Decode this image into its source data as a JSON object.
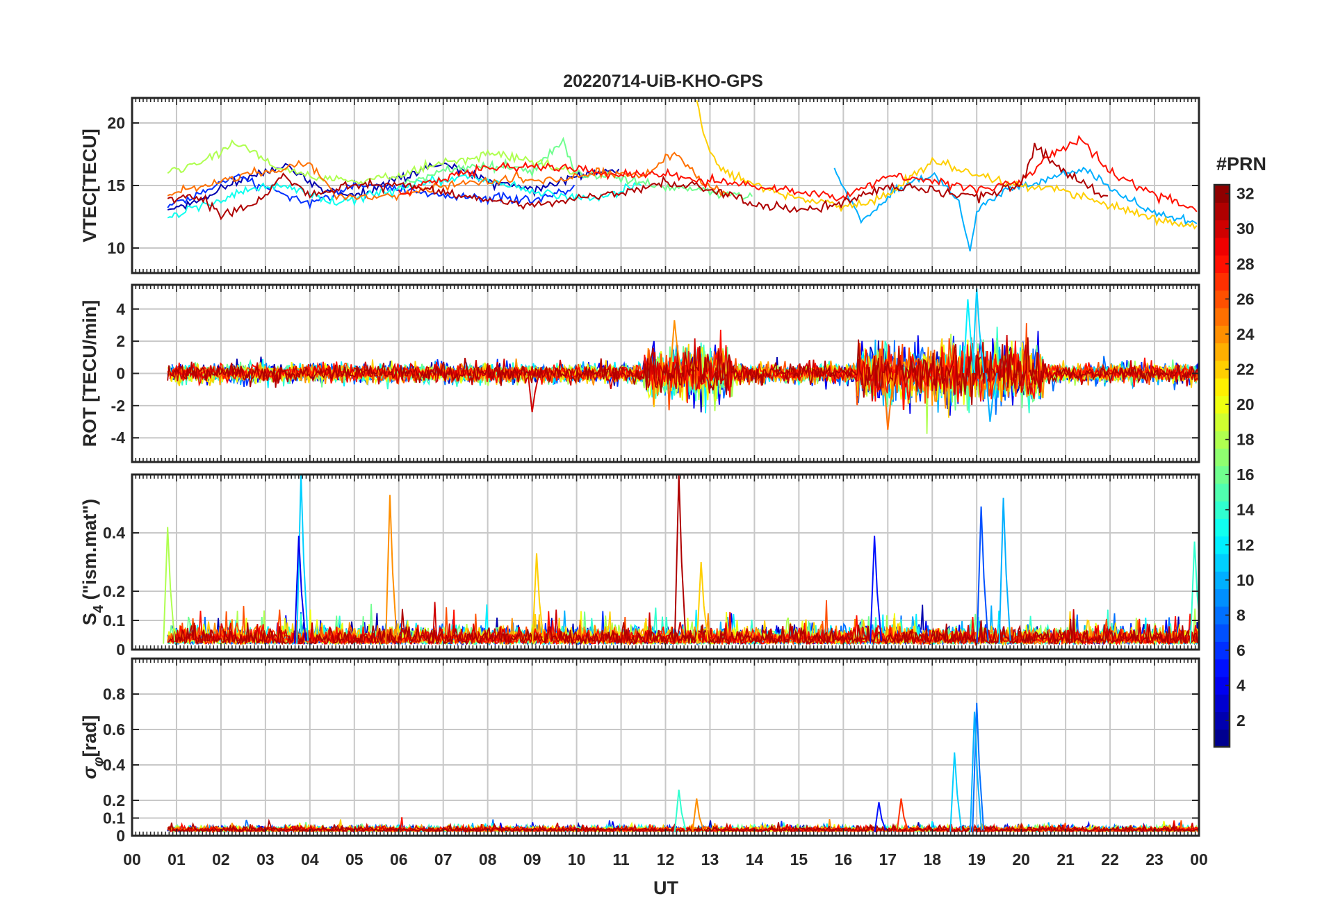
{
  "chart_data": {
    "type": "line",
    "title": "20220714-UiB-KHO-GPS",
    "xlabel": "UT",
    "x_ticks": [
      "00",
      "01",
      "02",
      "03",
      "04",
      "05",
      "06",
      "07",
      "08",
      "09",
      "10",
      "11",
      "12",
      "13",
      "14",
      "15",
      "16",
      "17",
      "18",
      "19",
      "20",
      "21",
      "22",
      "23",
      "00"
    ],
    "x_range_hours": [
      0,
      24
    ],
    "grid": true,
    "colorbar": {
      "label": "#PRN",
      "range": [
        1,
        32
      ],
      "ticks": [
        "2",
        "4",
        "6",
        "8",
        "10",
        "12",
        "14",
        "16",
        "18",
        "20",
        "22",
        "24",
        "26",
        "28",
        "30",
        "32"
      ],
      "colormap": "jet"
    },
    "panels": [
      {
        "name": "vtec",
        "ylabel": "VTEC[TECU]",
        "ylim": [
          8,
          22
        ],
        "y_ticks": [
          10,
          15,
          20
        ],
        "series_summary": "one trace per satellite PRN, values mostly between 11 and 18 TECU",
        "series": [
          {
            "prn": 2,
            "points": [
              [
                0.8,
                13.0
              ],
              [
                1.5,
                13.8
              ],
              [
                2.5,
                15.6
              ],
              [
                3.5,
                16.6
              ],
              [
                4.2,
                14.8
              ],
              [
                5.0,
                14.2
              ],
              [
                6.0,
                15.6
              ],
              [
                7.0,
                16.8
              ],
              [
                8.0,
                15.4
              ],
              [
                9.0,
                14.6
              ],
              [
                10.0,
                15.8
              ],
              [
                11.0,
                16.2
              ]
            ]
          },
          {
            "prn": 6,
            "points": [
              [
                0.8,
                13.4
              ],
              [
                1.6,
                14.6
              ],
              [
                2.4,
                15.8
              ],
              [
                3.2,
                14.6
              ],
              [
                4.0,
                13.6
              ],
              [
                5.0,
                15.0
              ],
              [
                6.0,
                14.8
              ],
              [
                7.0,
                14.2
              ],
              [
                8.0,
                14.0
              ],
              [
                9.0,
                13.8
              ],
              [
                10.0,
                14.8
              ]
            ]
          },
          {
            "prn": 10,
            "points": [
              [
                15.8,
                16.4
              ],
              [
                16.4,
                12.0
              ],
              [
                17.2,
                14.8
              ],
              [
                18.0,
                15.8
              ],
              [
                18.6,
                14.0
              ],
              [
                18.85,
                9.5
              ],
              [
                19.0,
                13.0
              ],
              [
                19.6,
                14.6
              ],
              [
                20.5,
                15.4
              ],
              [
                21.4,
                16.4
              ],
              [
                22.0,
                14.8
              ],
              [
                23.0,
                12.8
              ],
              [
                24.0,
                12.0
              ]
            ]
          },
          {
            "prn": 13,
            "points": [
              [
                0.8,
                12.4
              ],
              [
                1.5,
                13.2
              ],
              [
                2.5,
                14.6
              ],
              [
                3.5,
                15.0
              ],
              [
                4.5,
                13.6
              ],
              [
                5.5,
                14.4
              ],
              [
                6.5,
                15.2
              ],
              [
                7.5,
                15.8
              ],
              [
                8.5,
                15.0
              ],
              [
                9.5,
                14.2
              ],
              [
                10.5,
                14.0
              ],
              [
                11.5,
                15.2
              ]
            ]
          },
          {
            "prn": 16,
            "points": [
              [
                6.0,
                15.0
              ],
              [
                7.0,
                16.2
              ],
              [
                8.0,
                16.6
              ],
              [
                9.0,
                16.2
              ],
              [
                9.7,
                18.6
              ],
              [
                10.0,
                16.0
              ],
              [
                11.0,
                15.6
              ],
              [
                12.0,
                14.8
              ],
              [
                13.0,
                14.6
              ],
              [
                14.0,
                14.0
              ]
            ]
          },
          {
            "prn": 18,
            "points": [
              [
                0.8,
                16.2
              ],
              [
                1.5,
                16.8
              ],
              [
                2.4,
                18.4
              ],
              [
                3.2,
                16.6
              ],
              [
                4.0,
                15.8
              ],
              [
                5.0,
                15.4
              ],
              [
                6.0,
                15.8
              ],
              [
                7.0,
                16.8
              ],
              [
                8.0,
                17.6
              ],
              [
                9.0,
                17.0
              ],
              [
                10.0,
                16.0
              ]
            ]
          },
          {
            "prn": 22,
            "points": [
              [
                12.7,
                22.0
              ],
              [
                12.85,
                19.0
              ],
              [
                13.2,
                16.4
              ],
              [
                13.8,
                15.4
              ],
              [
                14.5,
                14.4
              ],
              [
                15.0,
                14.0
              ],
              [
                16.0,
                13.2
              ],
              [
                17.0,
                14.2
              ],
              [
                18.0,
                17.0
              ],
              [
                19.0,
                15.8
              ],
              [
                20.0,
                15.0
              ],
              [
                21.0,
                14.6
              ],
              [
                22.0,
                13.4
              ],
              [
                23.0,
                12.4
              ],
              [
                24.0,
                11.6
              ]
            ]
          },
          {
            "prn": 25,
            "points": [
              [
                0.8,
                14.2
              ],
              [
                1.6,
                15.0
              ],
              [
                2.5,
                15.8
              ],
              [
                3.3,
                16.2
              ],
              [
                4.0,
                16.8
              ],
              [
                4.6,
                14.2
              ],
              [
                5.5,
                14.0
              ],
              [
                6.5,
                14.6
              ],
              [
                7.5,
                15.2
              ],
              [
                8.5,
                15.6
              ],
              [
                9.5,
                15.4
              ],
              [
                10.5,
                16.0
              ],
              [
                11.5,
                15.8
              ],
              [
                12.2,
                17.8
              ],
              [
                12.8,
                15.4
              ],
              [
                13.5,
                14.0
              ]
            ]
          },
          {
            "prn": 28,
            "points": [
              [
                6.0,
                14.2
              ],
              [
                7.0,
                15.6
              ],
              [
                8.0,
                16.4
              ],
              [
                9.0,
                16.6
              ],
              [
                10.0,
                16.4
              ],
              [
                11.0,
                15.8
              ],
              [
                12.0,
                15.8
              ],
              [
                16.0,
                14.0
              ],
              [
                17.0,
                15.8
              ],
              [
                18.0,
                15.4
              ],
              [
                19.0,
                14.6
              ],
              [
                20.0,
                15.4
              ],
              [
                20.8,
                17.8
              ],
              [
                21.4,
                18.6
              ],
              [
                22.0,
                16.0
              ],
              [
                23.0,
                14.4
              ],
              [
                24.0,
                13.0
              ]
            ]
          },
          {
            "prn": 31,
            "points": [
              [
                0.8,
                13.8
              ],
              [
                1.5,
                14.2
              ],
              [
                2.0,
                12.6
              ],
              [
                2.8,
                13.6
              ],
              [
                3.4,
                15.8
              ],
              [
                4.0,
                14.2
              ],
              [
                5.0,
                15.0
              ],
              [
                6.0,
                15.2
              ],
              [
                7.0,
                14.4
              ],
              [
                8.0,
                13.8
              ],
              [
                9.0,
                13.4
              ],
              [
                10.0,
                14.0
              ],
              [
                11.0,
                14.4
              ],
              [
                12.0,
                15.2
              ],
              [
                13.0,
                14.8
              ],
              [
                14.0,
                13.4
              ],
              [
                15.0,
                13.0
              ],
              [
                16.0,
                13.6
              ],
              [
                17.0,
                15.0
              ],
              [
                18.0,
                14.6
              ],
              [
                19.0,
                14.0
              ],
              [
                20.0,
                15.0
              ],
              [
                20.3,
                18.2
              ],
              [
                21.0,
                16.0
              ],
              [
                22.0,
                14.0
              ]
            ]
          }
        ]
      },
      {
        "name": "rot",
        "ylabel": "ROT [TECU/min]",
        "ylim": [
          -5.5,
          5.5
        ],
        "y_ticks": [
          -4,
          -2,
          0,
          2,
          4
        ],
        "series_summary": "ROT fluctuations around 0, bursts near 12 UT (+/-3) and 17-20 UT (up to +/-4.5)"
      },
      {
        "name": "s4",
        "ylabel": "S4 (\"ism.mat\")",
        "ylabel_main": "S",
        "ylabel_sub": "4",
        "ylabel_rest": " (\"ism.mat\")",
        "ylim": [
          0,
          0.6
        ],
        "y_ticks": [
          0,
          0.1,
          0.2,
          0.4
        ],
        "y_tick_labels": [
          "0",
          "0.1",
          "0.2",
          "0.4"
        ],
        "series_summary": "background 0.02-0.08, spikes near 0.8 UT (0.42), 3.8 UT (0.6), 5.8 UT (0.53), 12.3 UT (0.6), 16.7 UT (0.39), 19.1-19.6 UT (0.49-0.52)"
      },
      {
        "name": "sigma-phi",
        "ylabel": "σφ[rad]",
        "ylabel_main": "σ",
        "ylabel_sub": "φ",
        "ylabel_rest": "[rad]",
        "ylim": [
          0,
          1.0
        ],
        "y_ticks": [
          0,
          0.1,
          0.2,
          0.4,
          0.6,
          0.8
        ],
        "y_tick_labels": [
          "0",
          "0.1",
          "0.2",
          "0.4",
          "0.6",
          "0.8"
        ],
        "series_summary": "background 0.02-0.06, spikes near 12.3 UT (0.26), 18.5 UT (0.47), 19.0 UT (0.75)"
      }
    ]
  }
}
